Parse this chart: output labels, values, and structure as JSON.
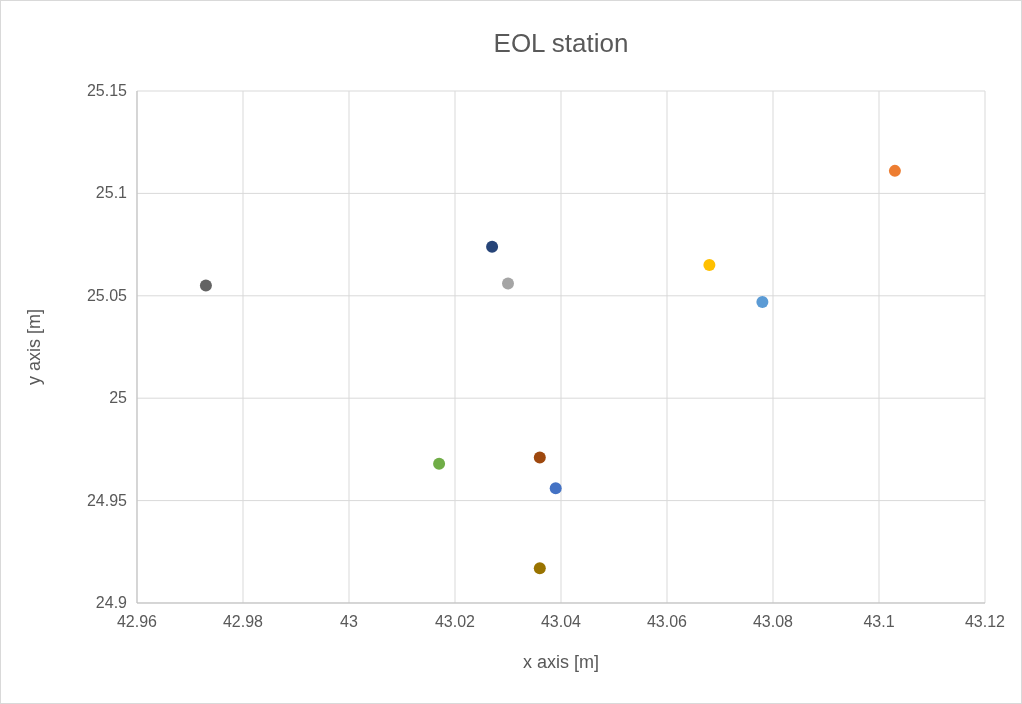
{
  "chart_data": {
    "type": "scatter",
    "title": "EOL station",
    "xlabel": "x axis [m]",
    "ylabel": "y axis [m]",
    "xlim": [
      42.96,
      43.12
    ],
    "xticks": [
      42.96,
      42.98,
      43,
      43.02,
      43.04,
      43.06,
      43.08,
      43.1,
      43.12
    ],
    "ylim": [
      24.9,
      25.15
    ],
    "yticks": [
      24.9,
      24.95,
      25,
      25.05,
      25.1,
      25.15
    ],
    "grid": true,
    "marker": "circle",
    "series": [
      {
        "color": "#4472c4",
        "x": [
          43.039
        ],
        "values": [
          24.956
        ]
      },
      {
        "color": "#ed7d31",
        "x": [
          43.103
        ],
        "values": [
          25.111
        ]
      },
      {
        "color": "#a5a5a5",
        "x": [
          43.03
        ],
        "values": [
          25.056
        ]
      },
      {
        "color": "#ffc000",
        "x": [
          43.068
        ],
        "values": [
          25.065
        ]
      },
      {
        "color": "#5b9bd5",
        "x": [
          43.078
        ],
        "values": [
          25.047
        ]
      },
      {
        "color": "#70ad47",
        "x": [
          43.017
        ],
        "values": [
          24.968
        ]
      },
      {
        "color": "#264478",
        "x": [
          43.027
        ],
        "values": [
          25.074
        ]
      },
      {
        "color": "#9e480e",
        "x": [
          43.036
        ],
        "values": [
          24.971
        ]
      },
      {
        "color": "#636363",
        "x": [
          42.973
        ],
        "values": [
          25.055
        ]
      },
      {
        "color": "#997300",
        "x": [
          43.036
        ],
        "values": [
          24.917
        ]
      }
    ]
  }
}
